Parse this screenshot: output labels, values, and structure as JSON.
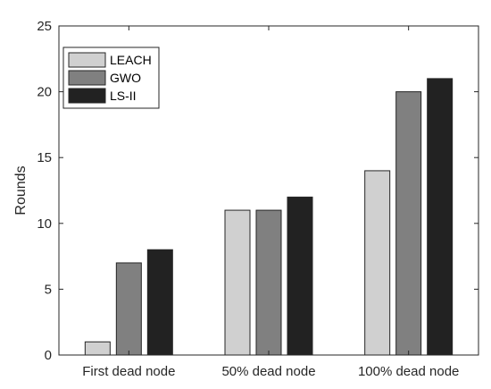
{
  "chart_data": {
    "type": "bar",
    "categories": [
      "First dead node",
      "50% dead node",
      "100% dead node"
    ],
    "series": [
      {
        "name": "LEACH",
        "values": [
          1,
          11,
          14
        ],
        "color": "#d0d0d0"
      },
      {
        "name": "GWO",
        "values": [
          7,
          11,
          20
        ],
        "color": "#808080"
      },
      {
        "name": "LS-II",
        "values": [
          8,
          12,
          21
        ],
        "color": "#222222"
      }
    ],
    "xlabel": "",
    "ylabel": "Rounds",
    "ylim": [
      0,
      25
    ],
    "yticks": [
      0,
      5,
      10,
      15,
      20,
      25
    ],
    "grid": false,
    "legend_position": "top-left"
  }
}
